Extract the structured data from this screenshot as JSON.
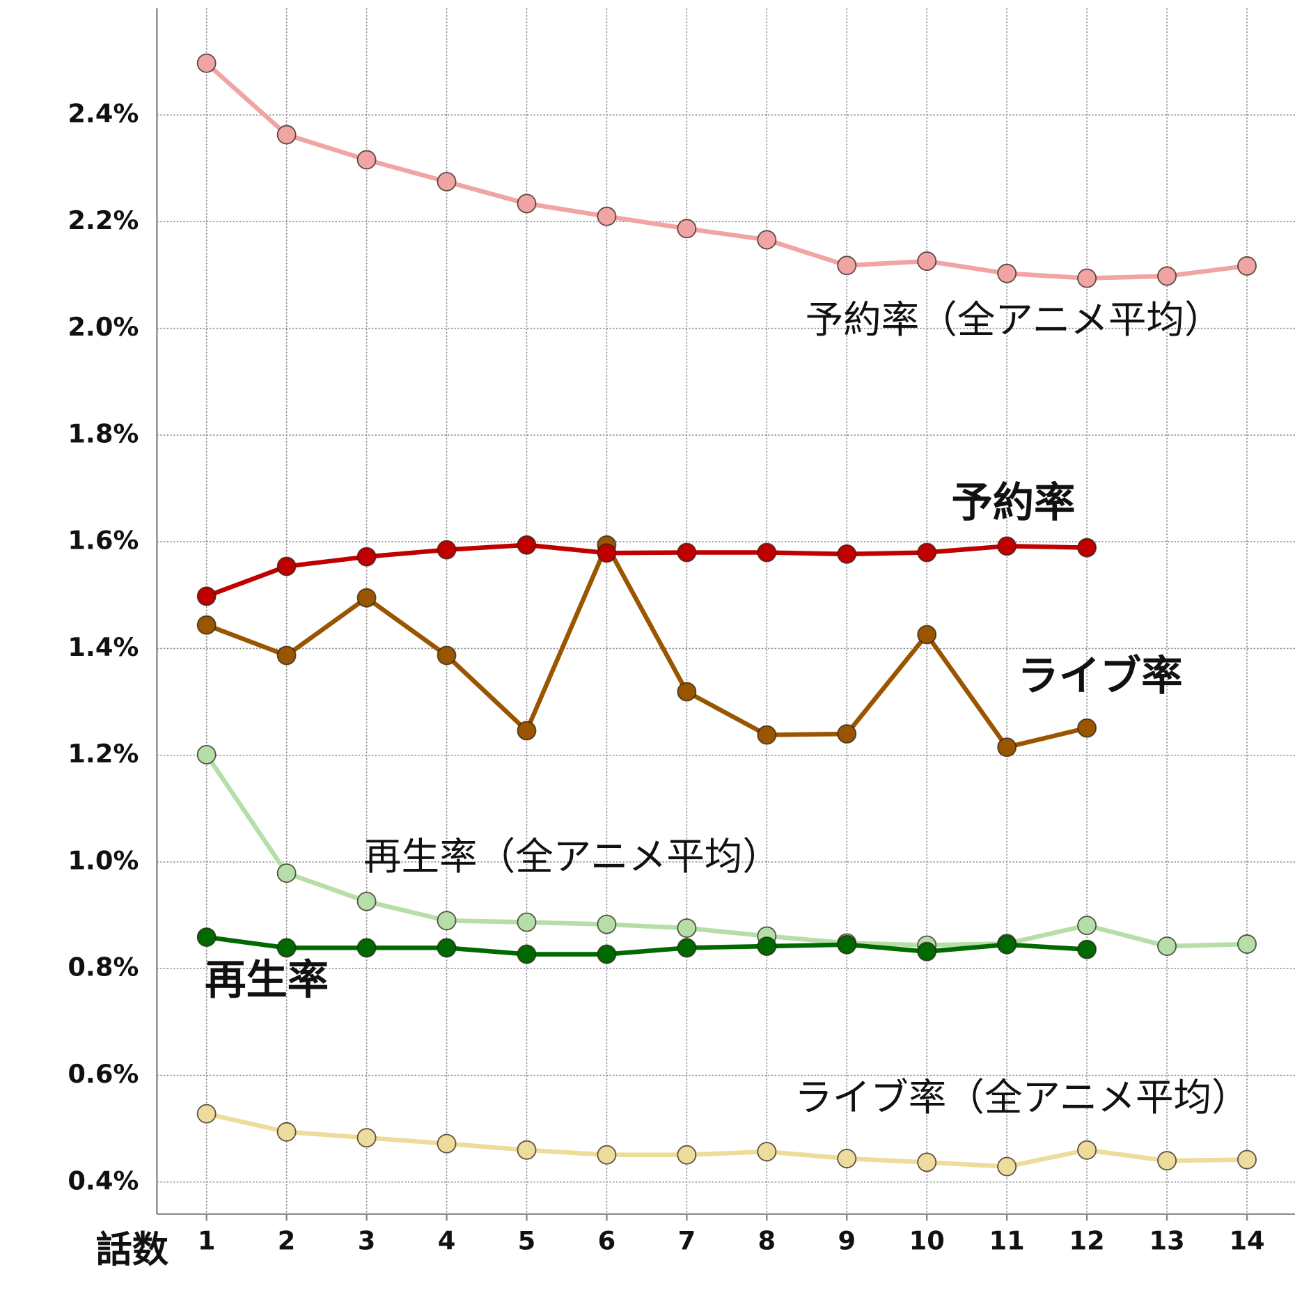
{
  "chart_data": {
    "type": "line",
    "x_label": "話数",
    "x": [
      1,
      2,
      3,
      4,
      5,
      6,
      7,
      8,
      9,
      10,
      11,
      12,
      13,
      14
    ],
    "xlim": [
      0.38,
      14.6
    ],
    "xticks": [
      1,
      2,
      3,
      4,
      5,
      6,
      7,
      8,
      9,
      10,
      11,
      12,
      13,
      14
    ],
    "ylim": [
      0.34,
      2.6
    ],
    "yticks": [
      {
        "value": 0.4,
        "label": "0.4%"
      },
      {
        "value": 0.6,
        "label": "0.6%"
      },
      {
        "value": 0.8,
        "label": "0.8%"
      },
      {
        "value": 1.0,
        "label": "1.0%"
      },
      {
        "value": 1.2,
        "label": "1.2%"
      },
      {
        "value": 1.4,
        "label": "1.4%"
      },
      {
        "value": 1.6,
        "label": "1.6%"
      },
      {
        "value": 1.8,
        "label": "1.8%"
      },
      {
        "value": 2.0,
        "label": "2.0%"
      },
      {
        "value": 2.2,
        "label": "2.2%"
      },
      {
        "value": 2.4,
        "label": "2.4%"
      }
    ],
    "grid": true,
    "series": [
      {
        "name": "予約率（全アニメ平均）",
        "color": "#f0a4a4",
        "values": [
          2.497,
          2.363,
          2.316,
          2.275,
          2.234,
          2.21,
          2.187,
          2.166,
          2.118,
          2.126,
          2.103,
          2.094,
          2.098,
          2.117
        ]
      },
      {
        "name": "ライブ率（全アニメ平均）",
        "color": "#eedc9c",
        "values": [
          0.528,
          0.494,
          0.483,
          0.472,
          0.46,
          0.451,
          0.451,
          0.457,
          0.444,
          0.437,
          0.429,
          0.46,
          0.44,
          0.442
        ]
      },
      {
        "name": "再生率（全アニメ平均）",
        "color": "#b5dea8",
        "values": [
          1.201,
          0.979,
          0.926,
          0.89,
          0.887,
          0.883,
          0.876,
          0.861,
          0.848,
          0.844,
          0.847,
          0.881,
          0.842,
          0.846
        ]
      },
      {
        "name": "再生率",
        "color": "#006a00",
        "values": [
          0.859,
          0.839,
          0.839,
          0.839,
          0.827,
          0.827,
          0.839,
          0.842,
          0.845,
          0.832,
          0.845,
          0.836,
          null,
          null
        ]
      },
      {
        "name": "ライブ率",
        "color": "#9a5500",
        "values": [
          1.444,
          1.387,
          1.495,
          1.387,
          1.246,
          1.594,
          1.319,
          1.238,
          1.24,
          1.426,
          1.215,
          1.251,
          null,
          null
        ]
      },
      {
        "name": "予約率",
        "color": "#c00000",
        "values": [
          1.498,
          1.554,
          1.572,
          1.585,
          1.594,
          1.579,
          1.58,
          1.58,
          1.577,
          1.58,
          1.592,
          1.589,
          null,
          null
        ]
      }
    ]
  }
}
